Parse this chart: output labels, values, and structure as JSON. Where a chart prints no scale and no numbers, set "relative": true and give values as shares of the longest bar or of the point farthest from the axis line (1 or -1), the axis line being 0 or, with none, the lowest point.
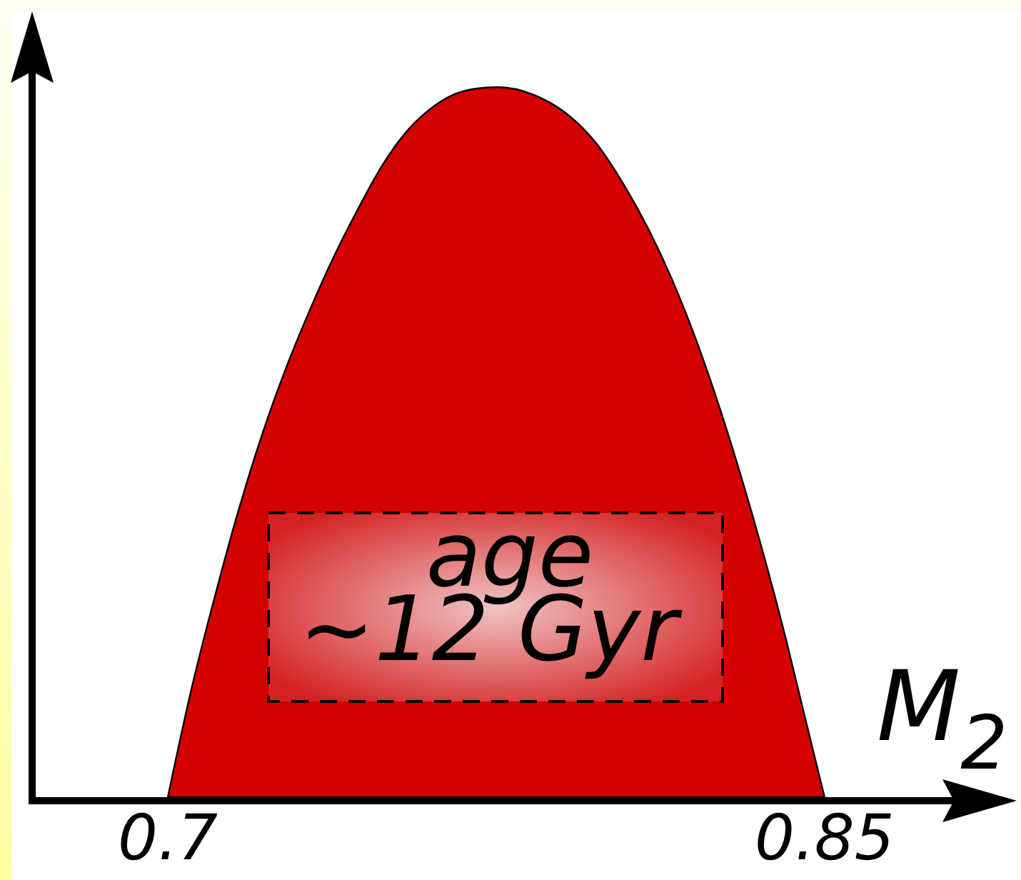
{
  "chart_data": {
    "type": "area",
    "xlabel": "M$_{2}$",
    "x": [
      0.7,
      0.7053,
      0.7108,
      0.7162,
      0.7216,
      0.7271,
      0.7325,
      0.7379,
      0.7434,
      0.7488,
      0.7542,
      0.7597,
      0.7651,
      0.7705,
      0.7754,
      0.7836,
      0.7912,
      0.7977,
      0.8043,
      0.8097,
      0.8151,
      0.8206,
      0.826,
      0.8314,
      0.8369,
      0.8412,
      0.8455,
      0.85
    ],
    "values": [
      0,
      0.15,
      0.284,
      0.405,
      0.512,
      0.606,
      0.687,
      0.761,
      0.828,
      0.888,
      0.935,
      0.968,
      0.989,
      0.998,
      1,
      0.989,
      0.962,
      0.922,
      0.861,
      0.801,
      0.73,
      0.645,
      0.549,
      0.442,
      0.323,
      0.222,
      0.113,
      0
    ],
    "color": "#d40000",
    "relative": true,
    "xlim": [
      0.669,
      0.889
    ],
    "xticks": [
      0.7,
      0.85
    ],
    "annotations": [
      "age\n~12 Gyr"
    ]
  }
}
